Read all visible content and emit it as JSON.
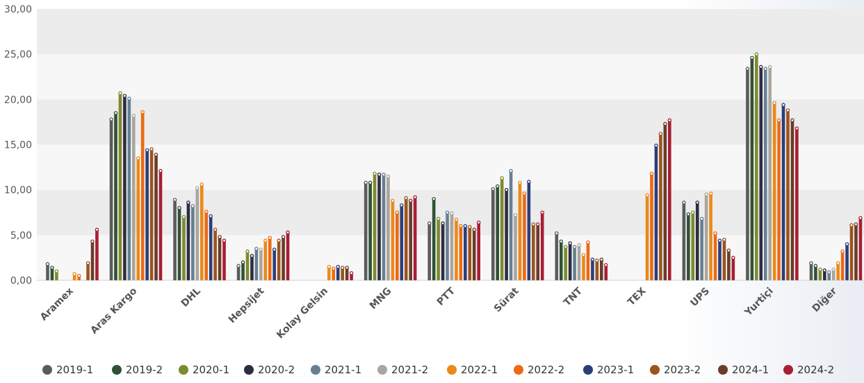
{
  "chart_data": {
    "type": "bar",
    "title": "",
    "xlabel": "",
    "ylabel": "",
    "ylim": [
      0,
      30
    ],
    "yticks": [
      "0,00",
      "5,00",
      "10,00",
      "15,00",
      "20,00",
      "25,00",
      "30,00"
    ],
    "grid": "horizontal alternating bands",
    "legend_position": "bottom",
    "categories": [
      "Aramex",
      "Aras Kargo",
      "DHL",
      "Hepsijet",
      "Kolay Gelsin",
      "MNG",
      "PTT",
      "Sürat",
      "TNT",
      "TEX",
      "UPS",
      "Yurtiçi",
      "Diğer"
    ],
    "series": [
      {
        "name": "2019-1",
        "color": "#5b5b5b",
        "values": [
          1.8,
          17.8,
          8.9,
          1.6,
          null,
          10.8,
          6.3,
          10.1,
          5.2,
          null,
          8.6,
          23.4,
          1.9
        ]
      },
      {
        "name": "2019-2",
        "color": "#2f5234",
        "values": [
          1.4,
          18.5,
          8.0,
          2.0,
          null,
          10.8,
          9.0,
          10.4,
          4.3,
          null,
          7.3,
          24.6,
          1.6
        ]
      },
      {
        "name": "2020-1",
        "color": "#7e8a2e",
        "values": [
          1.0,
          20.7,
          7.0,
          3.2,
          null,
          11.8,
          6.8,
          11.3,
          3.7,
          null,
          7.5,
          25.0,
          1.2
        ]
      },
      {
        "name": "2020-2",
        "color": "#2d2d42",
        "values": [
          null,
          20.4,
          8.6,
          2.7,
          null,
          11.7,
          6.3,
          10.0,
          4.1,
          null,
          8.6,
          23.6,
          1.1
        ]
      },
      {
        "name": "2021-1",
        "color": "#677f91",
        "values": [
          null,
          20.1,
          8.2,
          3.5,
          null,
          11.7,
          7.5,
          12.1,
          3.7,
          null,
          6.8,
          23.4,
          0.9
        ]
      },
      {
        "name": "2021-2",
        "color": "#aaa59f",
        "values": [
          null,
          18.2,
          10.2,
          3.4,
          null,
          11.5,
          7.4,
          7.2,
          3.9,
          null,
          9.5,
          23.6,
          1.2
        ]
      },
      {
        "name": "2022-1",
        "color": "#e98a1a",
        "values": [
          0.7,
          13.5,
          10.6,
          4.4,
          1.5,
          8.8,
          6.7,
          10.8,
          2.8,
          9.4,
          9.6,
          19.6,
          1.9
        ]
      },
      {
        "name": "2022-2",
        "color": "#ec6a14",
        "values": [
          0.5,
          18.6,
          7.6,
          4.7,
          1.3,
          7.5,
          6.0,
          9.6,
          4.2,
          11.8,
          5.2,
          17.7,
          3.2
        ]
      },
      {
        "name": "2023-1",
        "color": "#2c3e7a",
        "values": [
          null,
          14.4,
          7.1,
          3.4,
          1.5,
          8.3,
          6.0,
          10.9,
          2.3,
          14.9,
          4.4,
          19.4,
          4.0
        ]
      },
      {
        "name": "2023-2",
        "color": "#9a541e",
        "values": [
          1.9,
          14.5,
          5.6,
          4.4,
          1.4,
          9.1,
          5.9,
          6.2,
          2.2,
          16.2,
          4.5,
          18.8,
          6.1
        ]
      },
      {
        "name": "2024-1",
        "color": "#6a3c2a",
        "values": [
          4.3,
          13.9,
          4.8,
          4.8,
          1.4,
          8.8,
          5.6,
          6.2,
          2.3,
          17.3,
          3.3,
          17.7,
          6.2
        ]
      },
      {
        "name": "2024-2",
        "color": "#a81e34",
        "values": [
          5.6,
          12.1,
          4.4,
          5.3,
          0.8,
          9.2,
          6.4,
          7.5,
          1.7,
          17.7,
          2.5,
          16.8,
          6.9
        ]
      }
    ]
  }
}
